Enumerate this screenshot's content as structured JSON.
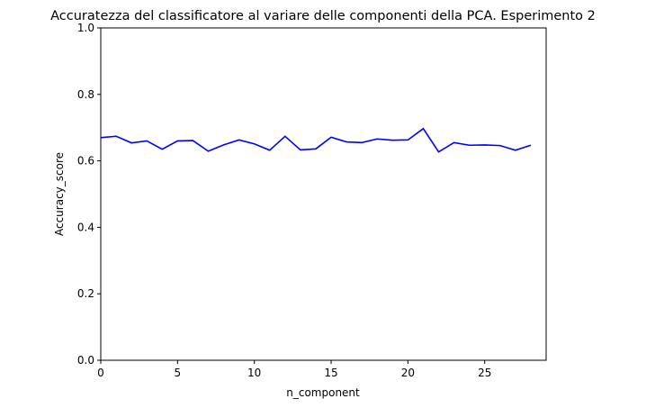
{
  "chart_data": {
    "type": "line",
    "title": "Accuratezza del classificatore al variare delle componenti della PCA. Esperimento 2",
    "xlabel": "n_component",
    "ylabel": "Accuracy_score",
    "xlim": [
      0,
      29
    ],
    "ylim": [
      0.0,
      1.0
    ],
    "xticks": [
      "0",
      "5",
      "10",
      "15",
      "20",
      "25"
    ],
    "yticks": [
      "0.0",
      "0.2",
      "0.4",
      "0.6",
      "0.8",
      "1.0"
    ],
    "grid": false,
    "series": [
      {
        "color": "#0000ff",
        "x": [
          0,
          1,
          2,
          3,
          4,
          5,
          6,
          7,
          8,
          9,
          10,
          11,
          12,
          13,
          14,
          15,
          16,
          17,
          18,
          19,
          20,
          21,
          22,
          23,
          24,
          25,
          26,
          27,
          28
        ],
        "y": [
          0.67,
          0.674,
          0.654,
          0.66,
          0.635,
          0.66,
          0.661,
          0.629,
          0.648,
          0.663,
          0.651,
          0.632,
          0.674,
          0.633,
          0.636,
          0.671,
          0.657,
          0.655,
          0.666,
          0.662,
          0.663,
          0.697,
          0.627,
          0.655,
          0.647,
          0.648,
          0.646,
          0.632,
          0.647
        ]
      }
    ]
  }
}
